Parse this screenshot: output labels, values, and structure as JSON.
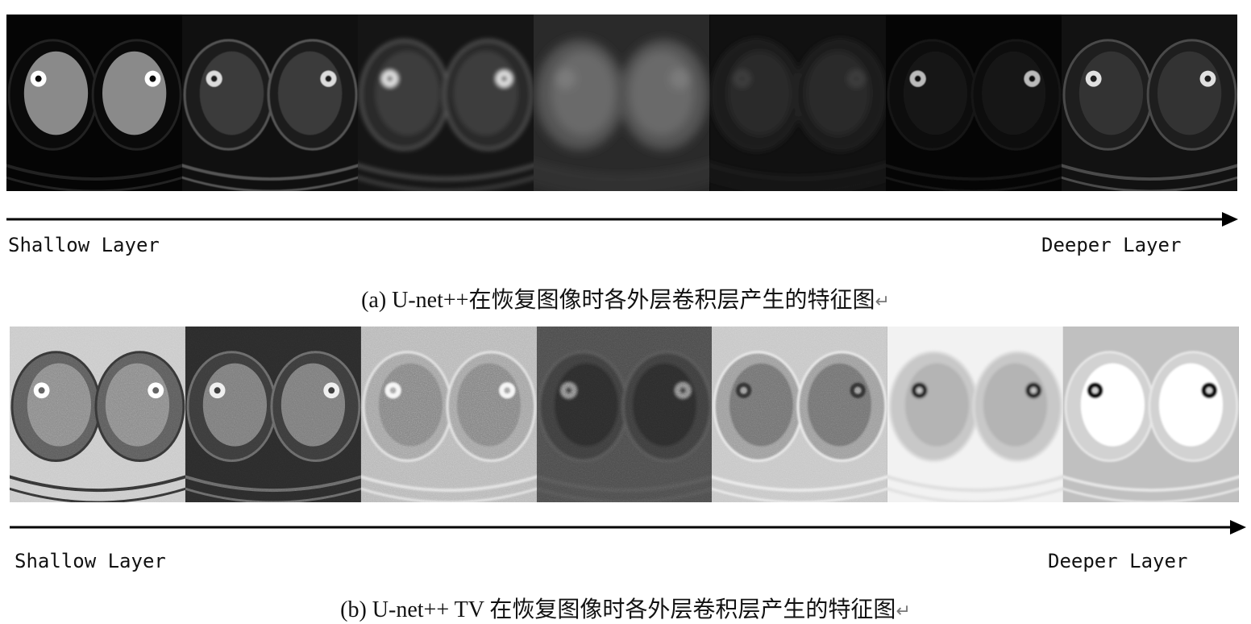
{
  "panel_a": {
    "caption_text": "(a) U-net++在恢复图像时各外层卷积层产生的特征图",
    "return_mark": "↵",
    "left_label": "Shallow Layer",
    "right_label": "Deeper Layer",
    "feature_maps": [
      {
        "name": "feature-map-a-1",
        "style": "dark-thighs-sharp"
      },
      {
        "name": "feature-map-a-2",
        "style": "dark-outline"
      },
      {
        "name": "feature-map-a-3",
        "style": "dark-blurred-bright-bone"
      },
      {
        "name": "feature-map-a-4",
        "style": "gray-blob"
      },
      {
        "name": "feature-map-a-5",
        "style": "dark-faint"
      },
      {
        "name": "feature-map-a-6",
        "style": "very-dark-dots"
      },
      {
        "name": "feature-map-a-7",
        "style": "dark-outline-sharp"
      }
    ]
  },
  "panel_b": {
    "caption_text": "(b) U-net++  TV 在恢复图像时各外层卷积层产生的特征图",
    "return_mark": "↵",
    "left_label": "Shallow Layer",
    "right_label": "Deeper Layer",
    "feature_maps": [
      {
        "name": "feature-map-b-1",
        "style": "noisy-light"
      },
      {
        "name": "feature-map-b-2",
        "style": "dark-noisy"
      },
      {
        "name": "feature-map-b-3",
        "style": "light-textured"
      },
      {
        "name": "feature-map-b-4",
        "style": "dark-blocky"
      },
      {
        "name": "feature-map-b-5",
        "style": "light-textured-2"
      },
      {
        "name": "feature-map-b-6",
        "style": "white-inverted"
      },
      {
        "name": "feature-map-b-7",
        "style": "white-bright-muscle"
      }
    ]
  }
}
